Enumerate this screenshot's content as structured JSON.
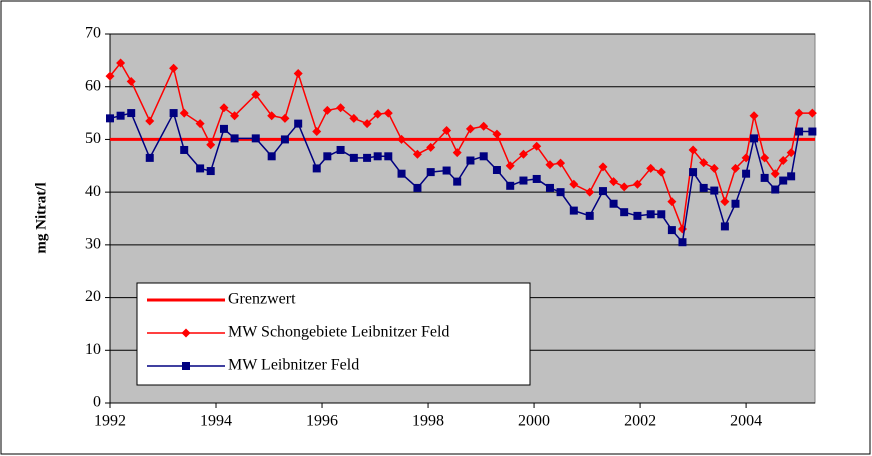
{
  "chart_data": {
    "type": "line",
    "y_label": "mg Nitrat/l",
    "xlim": [
      1992,
      2005.3
    ],
    "xticks": [
      1992,
      1994,
      1996,
      1998,
      2000,
      2002,
      2004
    ],
    "ylim": [
      0,
      70
    ],
    "yticks": [
      0,
      10,
      20,
      30,
      40,
      50,
      60,
      70
    ],
    "grid": true,
    "legend": "lower left",
    "reference_line": {
      "name": "Grenzwert",
      "value": 50,
      "color": "#ff0000"
    },
    "x": [
      1992.0,
      1992.2,
      1992.4,
      1992.75,
      1993.2,
      1993.4,
      1993.7,
      1993.9,
      1994.15,
      1994.35,
      1994.75,
      1995.05,
      1995.3,
      1995.55,
      1995.9,
      1996.1,
      1996.35,
      1996.6,
      1996.85,
      1997.05,
      1997.25,
      1997.5,
      1997.8,
      1998.05,
      1998.35,
      1998.55,
      1998.8,
      1999.05,
      1999.3,
      1999.55,
      1999.8,
      2000.05,
      2000.3,
      2000.5,
      2000.75,
      2001.05,
      2001.3,
      2001.5,
      2001.7,
      2001.95,
      2002.2,
      2002.4,
      2002.6,
      2002.8,
      2003.0,
      2003.2,
      2003.4,
      2003.6,
      2003.8,
      2004.0,
      2004.15,
      2004.35,
      2004.55,
      2004.7,
      2004.85,
      2005.0,
      2005.25
    ],
    "series": [
      {
        "name": "MW Schongebiete Leibnitzer Feld",
        "color": "#ff0000",
        "marker": "diamond",
        "values": [
          62,
          64.5,
          61,
          53.5,
          63.5,
          55,
          53,
          49,
          56,
          54.5,
          58.5,
          54.5,
          54,
          62.5,
          51.5,
          55.5,
          56,
          54,
          53,
          54.8,
          55,
          50,
          47.2,
          48.5,
          51.7,
          47.5,
          52,
          52.5,
          51,
          45,
          47.2,
          48.7,
          45.2,
          45.5,
          41.5,
          40,
          44.8,
          42,
          41,
          41.5,
          44.5,
          43.8,
          38.2,
          33,
          48,
          45.6,
          44.5,
          38.2,
          44.5,
          46.5,
          54.5,
          46.5,
          43.5,
          46,
          47.5,
          55,
          55
        ]
      },
      {
        "name": "MW Leibnitzer Feld",
        "color": "#000080",
        "marker": "square",
        "values": [
          54,
          54.5,
          55,
          46.5,
          55,
          48,
          44.5,
          44,
          52,
          50.2,
          50.2,
          46.8,
          50,
          53,
          44.5,
          46.8,
          48,
          46.5,
          46.5,
          46.8,
          46.8,
          43.5,
          40.8,
          43.8,
          44.1,
          42,
          46,
          46.8,
          44.2,
          41.2,
          42.2,
          42.5,
          40.8,
          40,
          36.5,
          35.5,
          40.2,
          37.8,
          36.2,
          35.5,
          35.8,
          35.8,
          32.8,
          30.5,
          43.8,
          40.8,
          40.3,
          33.5,
          37.8,
          43.5,
          50.2,
          42.7,
          40.5,
          42.2,
          43,
          51.5,
          51.5
        ]
      }
    ]
  }
}
